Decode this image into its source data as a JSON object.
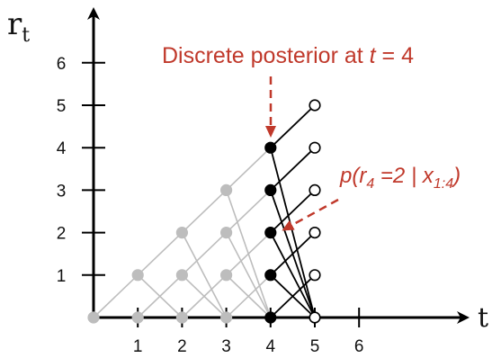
{
  "axes": {
    "y_label": "r",
    "y_label_sub": "t",
    "x_label": "t",
    "x_ticks": [
      "1",
      "2",
      "3",
      "4",
      "5",
      "6"
    ],
    "y_ticks": [
      "1",
      "2",
      "3",
      "4",
      "5",
      "6"
    ]
  },
  "annotations": {
    "discrete_posterior": "Discrete posterior at t = 4",
    "probability_label": "p(r4 =2 | x1:4)"
  },
  "colors": {
    "past": "#bdbdbd",
    "current": "#000000",
    "future": "#000000",
    "annotation": "#c0392b"
  },
  "lattice": {
    "current_step": 4,
    "next_step": 5,
    "max_t": 6,
    "max_r": 6
  }
}
